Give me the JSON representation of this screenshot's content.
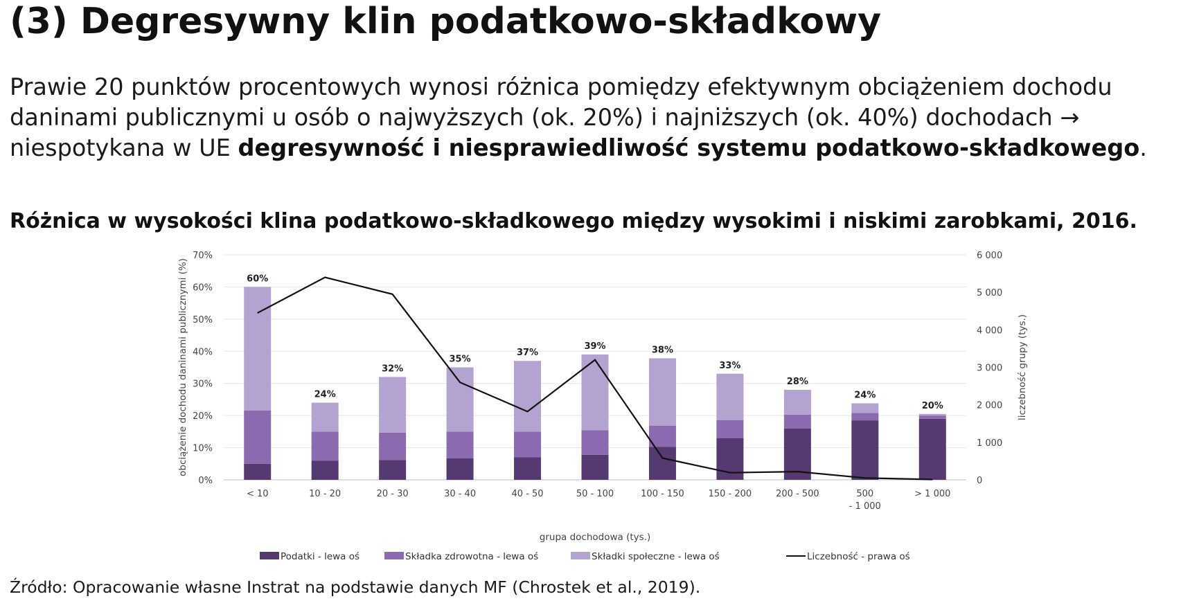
{
  "page": {
    "title": "(3) Degresywny klin podatkowo-składkowy",
    "intro_part1": "Prawie 20 punktów procentowych wynosi różnica pomiędzy efektywnym obciążeniem dochodu daninami publicznymi u osób o najwyższych (ok. 20%) i najniższych (ok. 40%) dochodach → niespotykana w UE ",
    "intro_bold": "degresywność i niesprawiedliwość systemu podatkowo-składkowego",
    "intro_end": ".",
    "source": "Źródło: Opracowanie własne Instrat na podstawie danych MF (Chrostek et al., 2019)."
  },
  "chart_data": {
    "type": "bar",
    "stacked": true,
    "title": "Różnica w wysokości klina podatkowo-składkowego między wysokimi i niskimi zarobkami, 2016.",
    "xlabel": "grupa dochodowa (tys.)",
    "ylabel": "obciążenie dochodu daninami publicznymi (%)",
    "y2label": "liczebność grupy (tys.)",
    "ylim": [
      0,
      70
    ],
    "y2lim": [
      0,
      6000
    ],
    "yticks": [
      "0%",
      "10%",
      "20%",
      "30%",
      "40%",
      "50%",
      "60%",
      "70%"
    ],
    "y2ticks": [
      "0",
      "1 000",
      "2 000",
      "3 000",
      "4 000",
      "5 000",
      "6 000"
    ],
    "categories": [
      {
        "line1": "< 10",
        "line2": ""
      },
      {
        "line1": "10 - 20",
        "line2": ""
      },
      {
        "line1": "20 - 30",
        "line2": ""
      },
      {
        "line1": "30 - 40",
        "line2": ""
      },
      {
        "line1": "40 - 50",
        "line2": ""
      },
      {
        "line1": "50 - 100",
        "line2": ""
      },
      {
        "line1": "100 - 150",
        "line2": ""
      },
      {
        "line1": "150 - 200",
        "line2": ""
      },
      {
        "line1": "200 - 500",
        "line2": ""
      },
      {
        "line1": "500",
        "line2": "- 1 000"
      },
      {
        "line1": "> 1 000",
        "line2": ""
      }
    ],
    "series": [
      {
        "name": "Podatki - lewa oś",
        "kind": "bar",
        "axis": "left",
        "color": "#553a72",
        "values": [
          5,
          6,
          6.2,
          6.7,
          7,
          7.8,
          10.3,
          13,
          16,
          18.5,
          19
        ]
      },
      {
        "name": "Składka zdrowotna - lewa oś",
        "kind": "bar",
        "axis": "left",
        "color": "#8a6bb0",
        "values": [
          16.6,
          9,
          8.5,
          8.3,
          8,
          7.6,
          6.5,
          5.6,
          4.3,
          2.3,
          1
        ]
      },
      {
        "name": "Składki społeczne - lewa oś",
        "kind": "bar",
        "axis": "left",
        "color": "#b4a3d0",
        "values": [
          38.4,
          9,
          17.3,
          20,
          22,
          23.6,
          21,
          14.4,
          7.7,
          3,
          0.5
        ]
      },
      {
        "name": "Liczebność - prawa oś",
        "kind": "line",
        "axis": "right",
        "color": "#111111",
        "values": [
          4450,
          5400,
          4950,
          2600,
          1820,
          3200,
          580,
          190,
          220,
          50,
          10
        ]
      }
    ],
    "total_labels": [
      "60%",
      "24%",
      "32%",
      "35%",
      "37%",
      "39%",
      "38%",
      "33%",
      "28%",
      "24%",
      "20%"
    ],
    "grid": true,
    "legend_position": "bottom"
  }
}
